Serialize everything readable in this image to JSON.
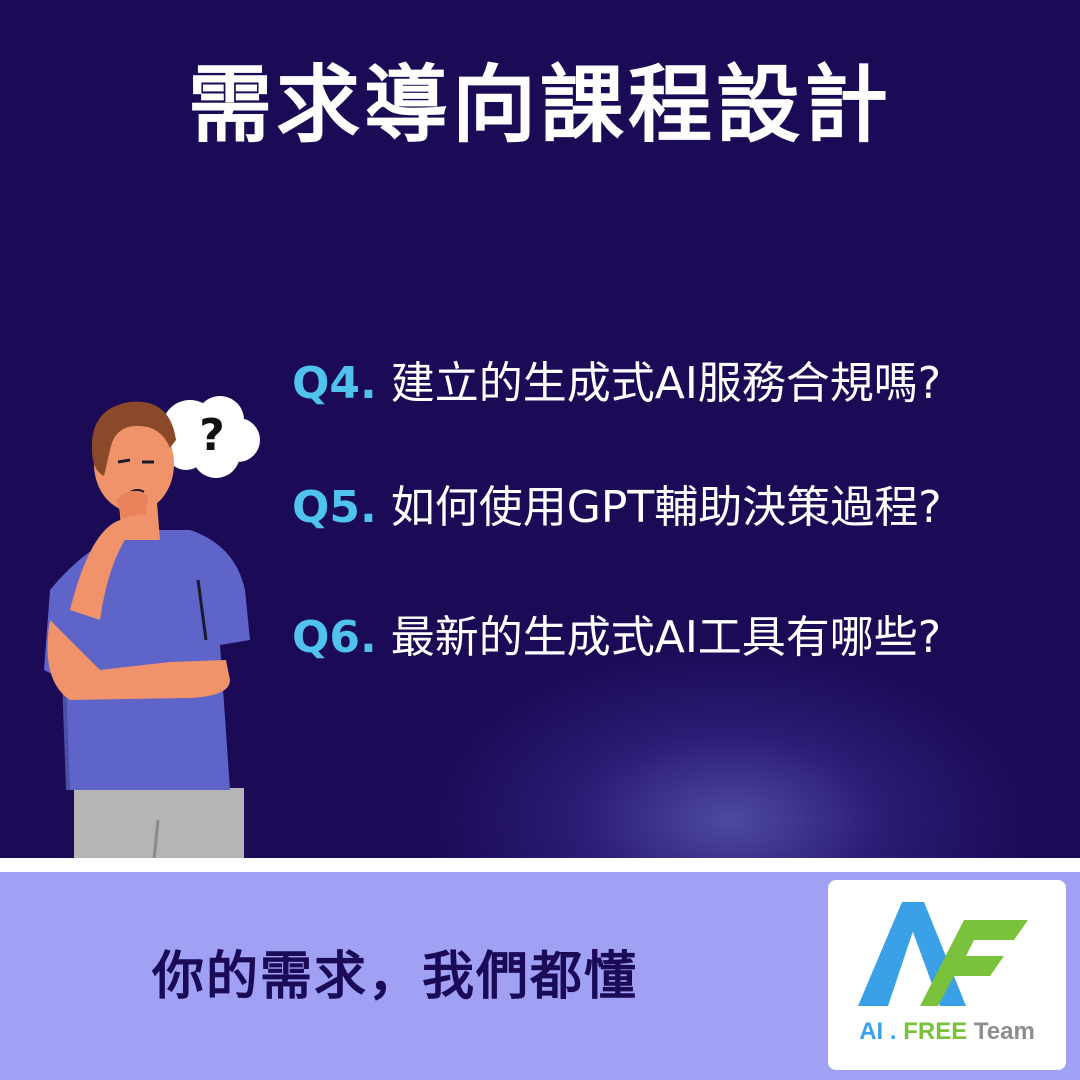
{
  "title": "需求導向課程設計",
  "questions": [
    {
      "num": "Q4.",
      "text": "建立的生成式AI服務合規嗎?"
    },
    {
      "num": "Q5.",
      "text": "如何使用GPT輔助決策過程?"
    },
    {
      "num": "Q6.",
      "text": "最新的生成式AI工具有哪些?"
    }
  ],
  "thought_bubble": "?",
  "slogan": "你的需求，我們都懂",
  "logo": {
    "ai": "AI",
    "dot": ".",
    "free": "FREE",
    "team": "Team"
  },
  "colors": {
    "background": "#1b0a55",
    "question_number": "#4fc3ee",
    "bottom_band": "#a0a0f5",
    "logo_blue": "#3aa0e8",
    "logo_green": "#7bc23c"
  }
}
